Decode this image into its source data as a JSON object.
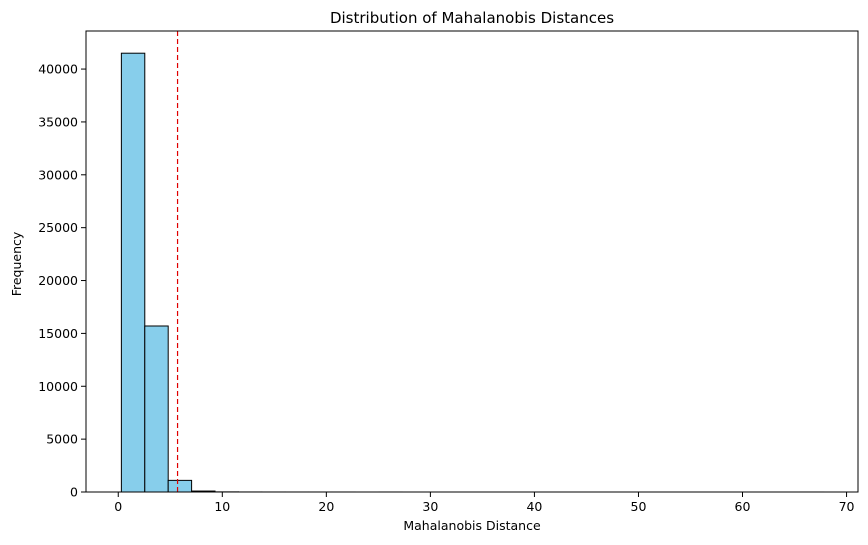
{
  "chart_data": {
    "type": "bar",
    "title": "Distribution of Mahalanobis Distances",
    "xlabel": "Mahalanobis Distance",
    "ylabel": "Frequency",
    "xlim": [
      -3.1,
      71.1
    ],
    "ylim": [
      0,
      43600
    ],
    "xticks": [
      0,
      10,
      20,
      30,
      40,
      50,
      60,
      70
    ],
    "yticks": [
      0,
      5000,
      10000,
      15000,
      20000,
      25000,
      30000,
      35000,
      40000
    ],
    "bins": [
      {
        "x0": 0.3,
        "x1": 2.55,
        "count": 41500
      },
      {
        "x0": 2.55,
        "x1": 4.8,
        "count": 15700
      },
      {
        "x0": 4.8,
        "x1": 7.05,
        "count": 1100
      },
      {
        "x0": 7.05,
        "x1": 9.3,
        "count": 90
      },
      {
        "x0": 9.3,
        "x1": 11.55,
        "count": 12
      },
      {
        "x0": 11.55,
        "x1": 13.8,
        "count": 4
      },
      {
        "x0": 13.8,
        "x1": 16.05,
        "count": 2
      },
      {
        "x0": 16.05,
        "x1": 18.3,
        "count": 1
      },
      {
        "x0": 18.3,
        "x1": 20.55,
        "count": 1
      },
      {
        "x0": 20.55,
        "x1": 22.8,
        "count": 1
      },
      {
        "x0": 22.8,
        "x1": 25.05,
        "count": 0
      },
      {
        "x0": 25.05,
        "x1": 27.3,
        "count": 1
      },
      {
        "x0": 27.3,
        "x1": 29.55,
        "count": 0
      },
      {
        "x0": 29.55,
        "x1": 31.8,
        "count": 0
      },
      {
        "x0": 31.8,
        "x1": 34.05,
        "count": 0
      },
      {
        "x0": 34.05,
        "x1": 36.3,
        "count": 0
      },
      {
        "x0": 36.3,
        "x1": 38.55,
        "count": 0
      },
      {
        "x0": 38.55,
        "x1": 40.8,
        "count": 0
      },
      {
        "x0": 40.8,
        "x1": 43.05,
        "count": 0
      },
      {
        "x0": 43.05,
        "x1": 45.3,
        "count": 0
      },
      {
        "x0": 45.3,
        "x1": 47.55,
        "count": 0
      },
      {
        "x0": 47.55,
        "x1": 49.8,
        "count": 0
      },
      {
        "x0": 49.8,
        "x1": 52.05,
        "count": 0
      },
      {
        "x0": 52.05,
        "x1": 54.3,
        "count": 0
      },
      {
        "x0": 54.3,
        "x1": 56.55,
        "count": 0
      },
      {
        "x0": 56.55,
        "x1": 58.8,
        "count": 0
      },
      {
        "x0": 58.8,
        "x1": 61.05,
        "count": 0
      },
      {
        "x0": 61.05,
        "x1": 63.3,
        "count": 0
      },
      {
        "x0": 63.3,
        "x1": 65.55,
        "count": 0
      },
      {
        "x0": 65.55,
        "x1": 67.8,
        "count": 1
      }
    ],
    "threshold_line": {
      "x": 5.7,
      "color": "#e00000",
      "style": "dashed"
    },
    "bar_color": "#87ceeb",
    "edge_color": "#000000",
    "grid": false,
    "legend": "none"
  }
}
